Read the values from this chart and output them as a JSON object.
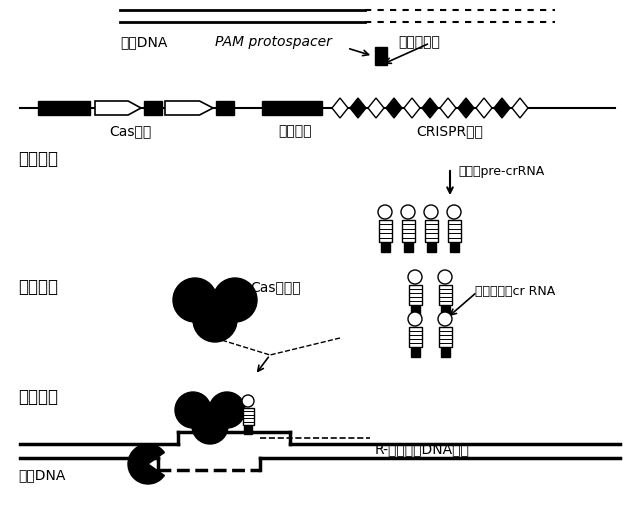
{
  "bg_color": "#ffffff",
  "black": "#000000",
  "white": "#ffffff",
  "labels": {
    "wai_yuan_dna_top": "外源DNA",
    "pam_proto": "PAM protospacer",
    "xin_jian_ge": "新间隔序列",
    "cas_gene": "Cas基因",
    "guide_seq": "引导序列",
    "crispr_seq": "CRISPR序列",
    "stage1": "适应阶段",
    "stage2": "表达阶段",
    "stage3": "干扰阶段",
    "transcribe": "转录成pre-crRNA",
    "process": "加工成成熟cr RNA",
    "cas_complex": "Cas复合物",
    "r_loop": "R-环形成，DNA切割",
    "wai_yuan_dna_bottom": "外源DNA"
  }
}
